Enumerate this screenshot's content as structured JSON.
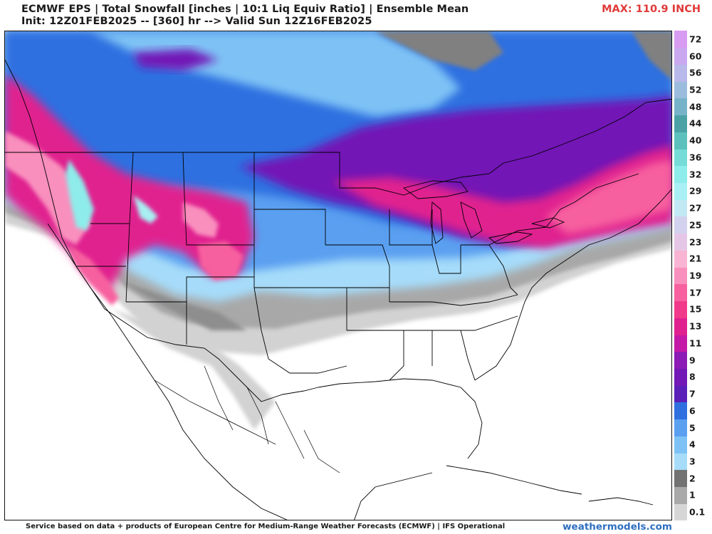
{
  "header": {
    "title_line1": "ECMWF EPS | Total Snowfall [inches | 10:1 Liq Equiv Ratio] | Ensemble Mean",
    "title_line2": "Init: 12Z01FEB2025 -- [360] hr --> Valid Sun 12Z16FEB2025",
    "max_label": "MAX: 110.9 INCH"
  },
  "colorbar": {
    "unit": "inches",
    "levels": [
      {
        "label": "0.1",
        "color": "#d6d6d6"
      },
      {
        "label": "1",
        "color": "#a9a9a9"
      },
      {
        "label": "2",
        "color": "#727272"
      },
      {
        "label": "3",
        "color": "#a6dcfa"
      },
      {
        "label": "4",
        "color": "#7ec2f5"
      },
      {
        "label": "5",
        "color": "#5a9ff0"
      },
      {
        "label": "6",
        "color": "#2f6fe0"
      },
      {
        "label": "7",
        "color": "#5a1fb8"
      },
      {
        "label": "8",
        "color": "#7218b6"
      },
      {
        "label": "9",
        "color": "#8c1ab4"
      },
      {
        "label": "11",
        "color": "#c418a6"
      },
      {
        "label": "13",
        "color": "#e0208f"
      },
      {
        "label": "15",
        "color": "#f13a8a"
      },
      {
        "label": "17",
        "color": "#f7619f"
      },
      {
        "label": "19",
        "color": "#f98fbd"
      },
      {
        "label": "21",
        "color": "#f9b3d3"
      },
      {
        "label": "23",
        "color": "#e6c6e6"
      },
      {
        "label": "25",
        "color": "#d2d2ee"
      },
      {
        "label": "27",
        "color": "#c2e8f4"
      },
      {
        "label": "29",
        "color": "#a8f0f3"
      },
      {
        "label": "32",
        "color": "#8eecea"
      },
      {
        "label": "36",
        "color": "#76dcd8"
      },
      {
        "label": "40",
        "color": "#5cc1bc"
      },
      {
        "label": "44",
        "color": "#4ba2a6"
      },
      {
        "label": "48",
        "color": "#76b3c9"
      },
      {
        "label": "52",
        "color": "#9bbcdc"
      },
      {
        "label": "56",
        "color": "#b8b8ea"
      },
      {
        "label": "60",
        "color": "#c9a8ef"
      },
      {
        "label": "72",
        "color": "#d89cf2"
      }
    ]
  },
  "footer": {
    "credit": "Service based on data + products of European Centre for Medium-Range Weather Forecasts (ECMWF) | IFS Operational",
    "site": "weathermodels.com"
  }
}
